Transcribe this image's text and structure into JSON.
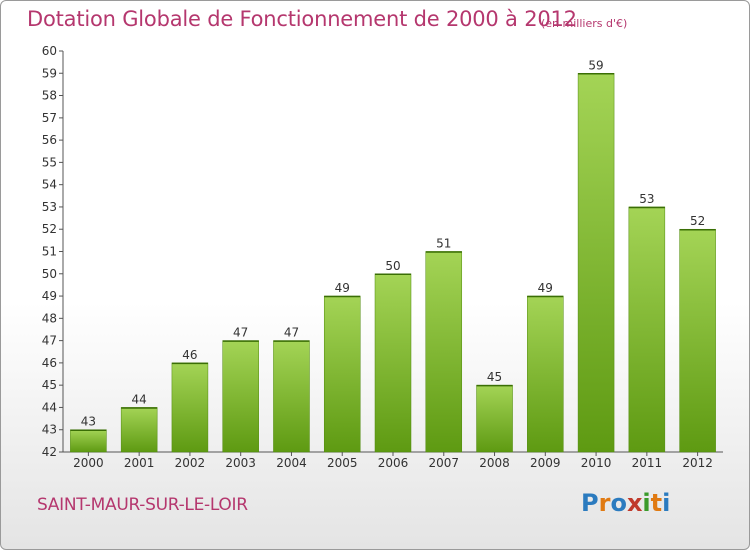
{
  "header": {
    "title": "Dotation Globale de Fonctionnement de 2000 à 2012",
    "subtitle": "(en milliers d'€)"
  },
  "footer": {
    "commune": "SAINT-MAUR-SUR-LE-LOIR",
    "logo": "Proxiti"
  },
  "chart_data": {
    "type": "bar",
    "categories": [
      "2000",
      "2001",
      "2002",
      "2003",
      "2004",
      "2005",
      "2006",
      "2007",
      "2008",
      "2009",
      "2010",
      "2011",
      "2012"
    ],
    "values": [
      43,
      44,
      46,
      47,
      47,
      49,
      50,
      51,
      45,
      49,
      59,
      53,
      52
    ],
    "ylim": [
      42,
      60
    ],
    "yticks": [
      42,
      43,
      44,
      45,
      46,
      47,
      48,
      49,
      50,
      51,
      52,
      53,
      54,
      55,
      56,
      57,
      58,
      59,
      60
    ],
    "grid": false,
    "colors": {
      "bar_top": "#a4d456",
      "bar_bottom": "#5e9a12",
      "axis": "#555555",
      "title": "#b5376e"
    }
  }
}
